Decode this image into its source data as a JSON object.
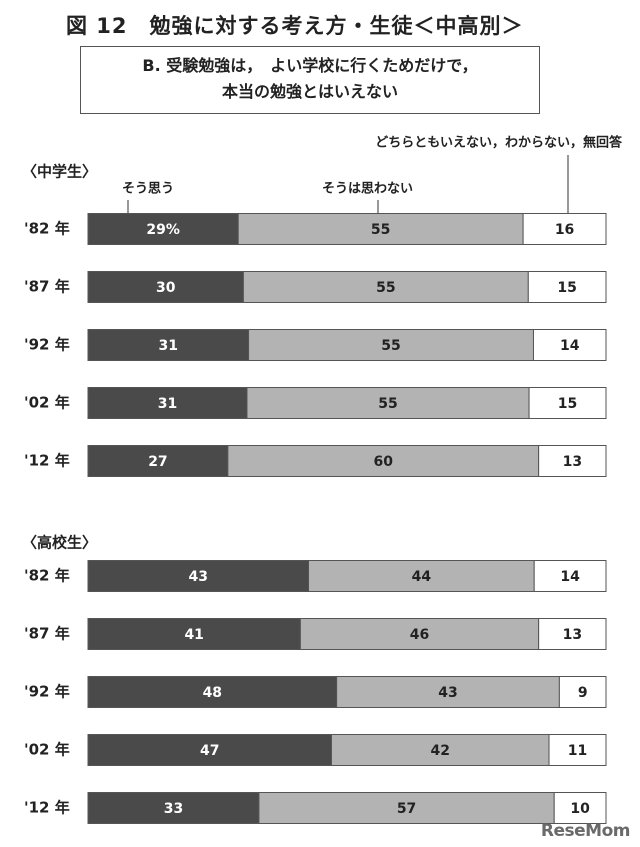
{
  "title": "図 12　勉強に対する考え方・生徒＜中高別＞",
  "question": {
    "line1": "B.  受験勉強は，　よい学校に行くためだけで，",
    "line2": "本当の勉強とはいえない"
  },
  "legend": {
    "agree": "そう思う",
    "disagree": "そうは思わない",
    "neutral": "どちらともいえない，わからない，無回答"
  },
  "colors": {
    "agree": "#4a4a4a",
    "disagree": "#b3b3b3",
    "neutral": "#ffffff",
    "border": "#555555"
  },
  "watermark": "ReseMom",
  "chart_data": {
    "type": "bar",
    "orientation": "horizontal",
    "stacked": true,
    "categories": [
      "そう思う",
      "そうは思わない",
      "どちらともいえない，わからない，無回答"
    ],
    "groups": [
      {
        "label": "〈中学生〉",
        "rows": [
          {
            "year": "'82 年",
            "values": [
              29,
              55,
              16
            ],
            "labels": [
              "29%",
              "55",
              "16"
            ]
          },
          {
            "year": "'87 年",
            "values": [
              30,
              55,
              15
            ],
            "labels": [
              "30",
              "55",
              "15"
            ]
          },
          {
            "year": "'92 年",
            "values": [
              31,
              55,
              14
            ],
            "labels": [
              "31",
              "55",
              "14"
            ]
          },
          {
            "year": "'02 年",
            "values": [
              31,
              55,
              15
            ],
            "labels": [
              "31",
              "55",
              "15"
            ]
          },
          {
            "year": "'12 年",
            "values": [
              27,
              60,
              13
            ],
            "labels": [
              "27",
              "60",
              "13"
            ]
          }
        ]
      },
      {
        "label": "〈高校生〉",
        "rows": [
          {
            "year": "'82 年",
            "values": [
              43,
              44,
              14
            ],
            "labels": [
              "43",
              "44",
              "14"
            ]
          },
          {
            "year": "'87 年",
            "values": [
              41,
              46,
              13
            ],
            "labels": [
              "41",
              "46",
              "13"
            ]
          },
          {
            "year": "'92 年",
            "values": [
              48,
              43,
              9
            ],
            "labels": [
              "48",
              "43",
              "9"
            ]
          },
          {
            "year": "'02 年",
            "values": [
              47,
              42,
              11
            ],
            "labels": [
              "47",
              "42",
              "11"
            ]
          },
          {
            "year": "'12 年",
            "values": [
              33,
              57,
              10
            ],
            "labels": [
              "33",
              "57",
              "10"
            ]
          }
        ]
      }
    ]
  }
}
